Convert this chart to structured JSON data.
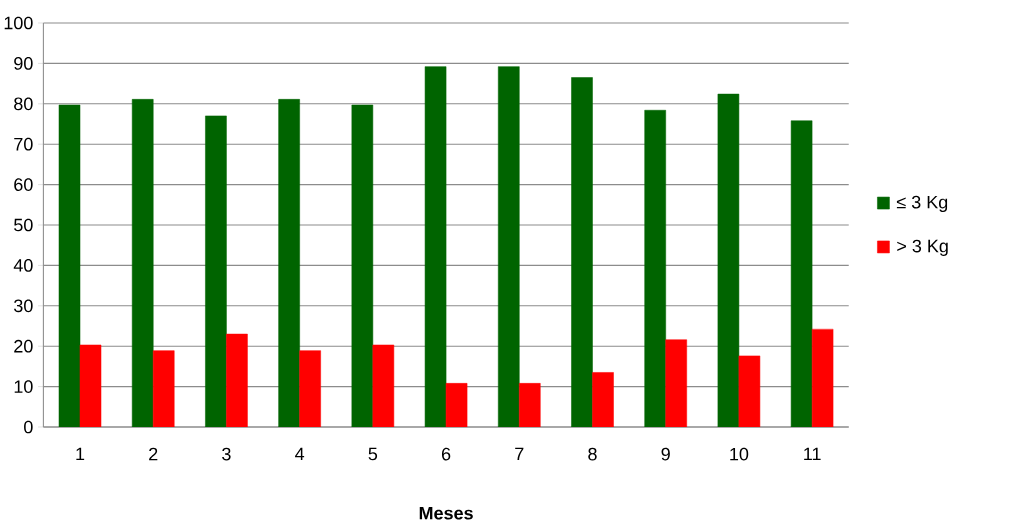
{
  "chart_data": {
    "type": "bar",
    "xlabel": "Meses",
    "categories": [
      "1",
      "2",
      "3",
      "4",
      "5",
      "6",
      "7",
      "8",
      "9",
      "10",
      "11"
    ],
    "series": [
      {
        "name": "≤ 3 Kg",
        "color": "#006400",
        "values": [
          79.7,
          81.1,
          77.0,
          81.1,
          79.7,
          89.2,
          89.2,
          86.5,
          78.4,
          82.4,
          75.8
        ]
      },
      {
        "name": "> 3 Kg",
        "color": "#ff0000",
        "values": [
          20.3,
          18.9,
          23.0,
          18.9,
          20.3,
          10.8,
          10.8,
          13.5,
          21.6,
          17.6,
          24.2
        ]
      }
    ],
    "ylim": [
      0,
      100
    ],
    "yticks": [
      0,
      10,
      20,
      30,
      40,
      50,
      60,
      70,
      80,
      90,
      100
    ],
    "grid": "y",
    "legend": "right"
  }
}
